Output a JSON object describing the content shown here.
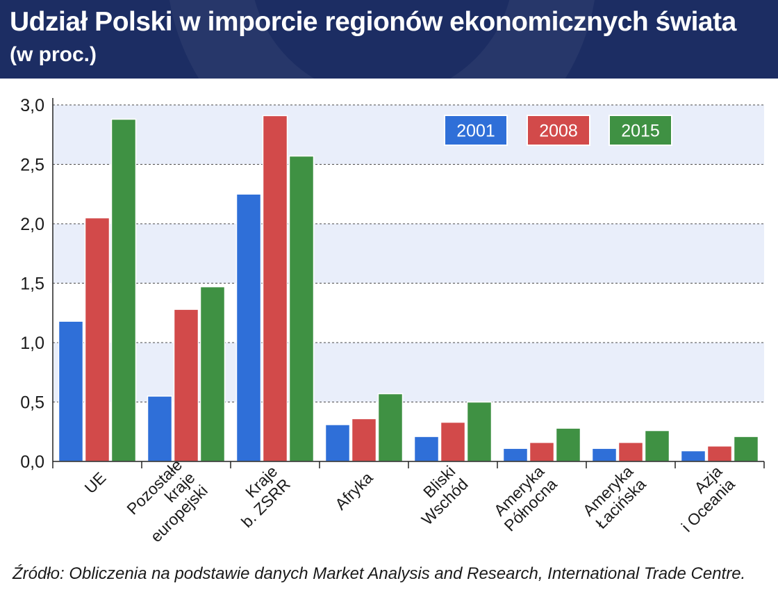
{
  "header": {
    "title": "Udział Polski w imporcie regionów ekonomicznych świata",
    "subtitle": "(w proc.)"
  },
  "source": "Źródło: Obliczenia na podstawie danych Market Analysis and Research, International Trade Centre.",
  "colors": {
    "header_bg": "#1c2d63",
    "band": "#e9eefa",
    "series_2001": "#2f6fd8",
    "series_2008": "#d24a4a",
    "series_2015": "#3f9143"
  },
  "chart_data": {
    "type": "bar",
    "title": "Udział Polski w imporcie regionów ekonomicznych świata",
    "ylabel": "(w proc.)",
    "xlabel": "",
    "ylim": [
      0,
      3.0
    ],
    "yticks": [
      {
        "value": 0,
        "label": "0,0"
      },
      {
        "value": 0.5,
        "label": "0,5"
      },
      {
        "value": 1.0,
        "label": "1,0"
      },
      {
        "value": 1.5,
        "label": "1,5"
      },
      {
        "value": 2.0,
        "label": "2,0"
      },
      {
        "value": 2.5,
        "label": "2,5"
      },
      {
        "value": 3.0,
        "label": "3,0"
      }
    ],
    "grid": true,
    "legend_position": "top-right",
    "categories": [
      [
        "UE"
      ],
      [
        "Pozostałe",
        "kraje",
        "europejski"
      ],
      [
        "Kraje",
        "b. ZSRR"
      ],
      [
        "Afryka"
      ],
      [
        "Bliski",
        "Wschód"
      ],
      [
        "Ameryka",
        "Północna"
      ],
      [
        "Ameryka",
        "Łacińska"
      ],
      [
        "Azja",
        "i Oceania"
      ]
    ],
    "series": [
      {
        "name": "2001",
        "color": "#2f6fd8",
        "values": [
          1.18,
          0.55,
          2.25,
          0.31,
          0.21,
          0.11,
          0.11,
          0.09
        ]
      },
      {
        "name": "2008",
        "color": "#d24a4a",
        "values": [
          2.05,
          1.28,
          2.91,
          0.36,
          0.33,
          0.16,
          0.16,
          0.13
        ]
      },
      {
        "name": "2015",
        "color": "#3f9143",
        "values": [
          2.88,
          1.47,
          2.57,
          0.57,
          0.5,
          0.28,
          0.26,
          0.21
        ]
      }
    ]
  }
}
